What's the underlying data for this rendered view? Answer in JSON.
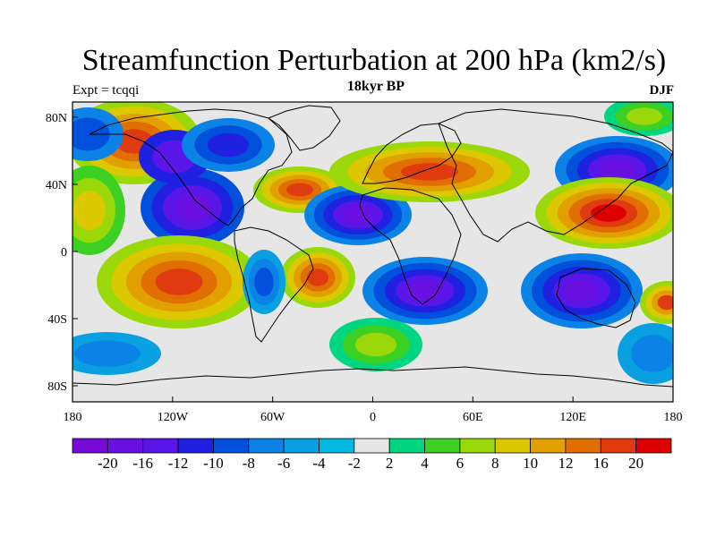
{
  "figure": {
    "title": "Streamfunction Perturbation at 200 hPa (km2/s)",
    "subtitle": "18kyr BP",
    "left_label": "Expt = tcqqi",
    "right_label": "DJF"
  },
  "map": {
    "lon_ticks": [
      "180",
      "120W",
      "60W",
      "0",
      "60E",
      "120E",
      "180"
    ],
    "lat_ticks": [
      "80N",
      "40N",
      "0",
      "40S",
      "80S"
    ],
    "background_color": "#e6e6e6",
    "coast_color": "#000000"
  },
  "colorbar": {
    "colors": [
      "#7a0ad8",
      "#6a10e0",
      "#5a16e8",
      "#2020e0",
      "#0050dc",
      "#0a82e6",
      "#08a0e0",
      "#00b8e0",
      "#e6e6e6",
      "#00d682",
      "#3cd024",
      "#9ad80a",
      "#dcc800",
      "#e2a000",
      "#e06e00",
      "#e03a10",
      "#dc0000"
    ],
    "labels": [
      "-20",
      "-16",
      "-12",
      "-10",
      "-8",
      "-6",
      "-4",
      "-2",
      "2",
      "4",
      "6",
      "8",
      "10",
      "12",
      "16",
      "20"
    ]
  }
}
